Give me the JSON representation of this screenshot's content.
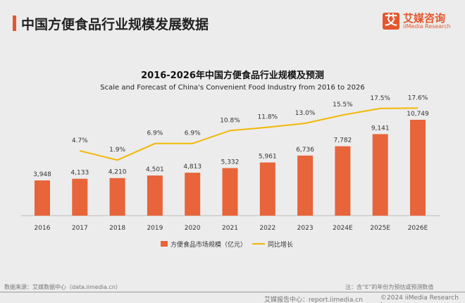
{
  "header": {
    "title": "中国方便食品行业规模发展数据",
    "logo_mark": "艾",
    "logo_cn": "艾媒咨询",
    "logo_en": "iiMedia Research"
  },
  "chart_data": {
    "type": "bar+line",
    "title": "2016-2026年中国方便食品行业规模及预测",
    "subtitle": "Scale and Forecast of China's Convenient Food Industry from 2016 to 2026",
    "categories": [
      "2016",
      "2017",
      "2018",
      "2019",
      "2020",
      "2021",
      "2022",
      "2023",
      "2024E",
      "2025E",
      "2026E"
    ],
    "series": [
      {
        "name": "方便食品市场规模（亿元）",
        "type": "bar",
        "color": "#e8643a",
        "values": [
          3948,
          4133,
          4210,
          4501,
          4813,
          5332,
          5961,
          6736,
          7782,
          9141,
          10749
        ],
        "labels": [
          "3,948",
          "4,133",
          "4,210",
          "4,501",
          "4,813",
          "5,332",
          "5,961",
          "6,736",
          "7,782",
          "9,141",
          "10,749"
        ]
      },
      {
        "name": "同比增长",
        "type": "line",
        "color": "#f2b705",
        "values": [
          null,
          4.7,
          1.9,
          6.9,
          6.9,
          10.8,
          11.8,
          13.0,
          15.5,
          17.5,
          17.6
        ],
        "labels": [
          "",
          "4.7%",
          "1.9%",
          "6.9%",
          "6.9%",
          "10.8%",
          "11.8%",
          "13.0%",
          "15.5%",
          "17.5%",
          "17.6%"
        ]
      }
    ],
    "legend": "bottom",
    "grid": false
  },
  "footer": {
    "source": "数据来源：艾媒数据中心（data.iimedia.cn）",
    "note": "注：含“E”的年份为预估或预测数值",
    "report": "艾媒报告中心：report.iimedia.cn",
    "copyright": "©2024  iiMedia Research Inc"
  }
}
